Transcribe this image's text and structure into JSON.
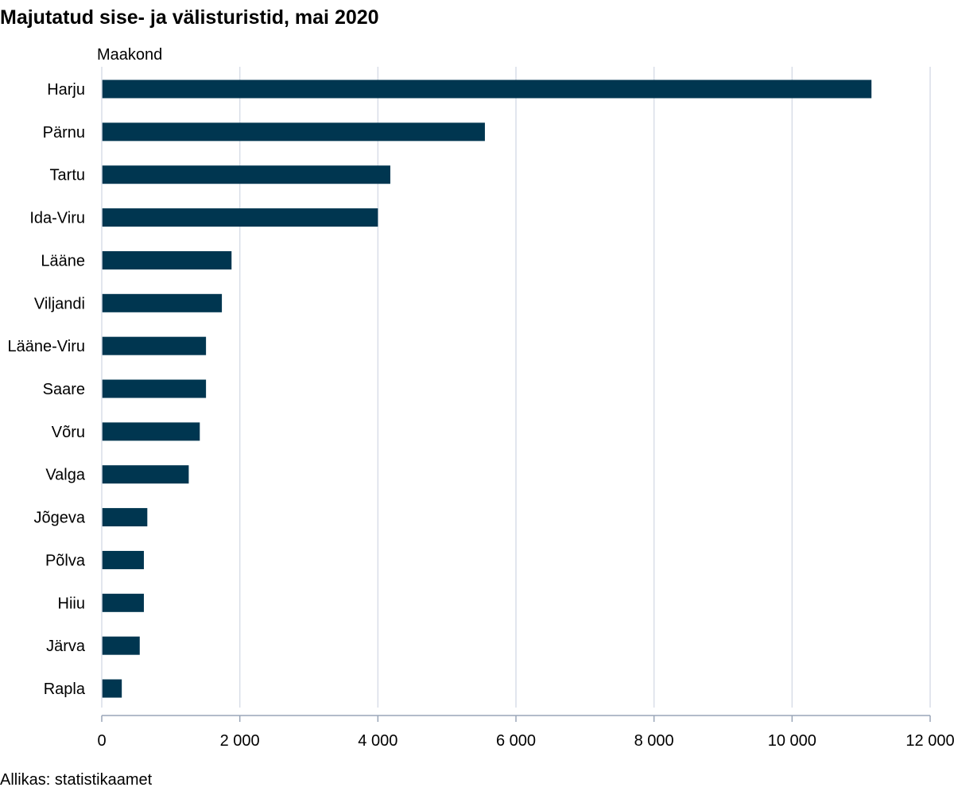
{
  "source": "Allikas: statistikaamet",
  "chart_data": {
    "type": "bar",
    "orientation": "horizontal",
    "title": "Majutatud sise- ja välisturistid, mai 2020",
    "category_axis_label": "Maakond",
    "categories": [
      "Harju",
      "Pärnu",
      "Tartu",
      "Ida-Viru",
      "Lääne",
      "Viljandi",
      "Lääne-Viru",
      "Saare",
      "Võru",
      "Valga",
      "Jõgeva",
      "Põlva",
      "Hiiu",
      "Järva",
      "Rapla"
    ],
    "values": [
      11150,
      5550,
      4180,
      4000,
      1880,
      1740,
      1510,
      1510,
      1420,
      1260,
      660,
      610,
      610,
      550,
      290
    ],
    "xlim": [
      0,
      12000
    ],
    "xticks": [
      0,
      2000,
      4000,
      6000,
      8000,
      10000,
      12000
    ],
    "xtick_labels": [
      "0",
      "2 000",
      "4 000",
      "6 000",
      "8 000",
      "10 000",
      "12 000"
    ],
    "grid": "vertical",
    "legend": "none",
    "bar_color": "#003650",
    "grid_color": "#d9dee8"
  }
}
